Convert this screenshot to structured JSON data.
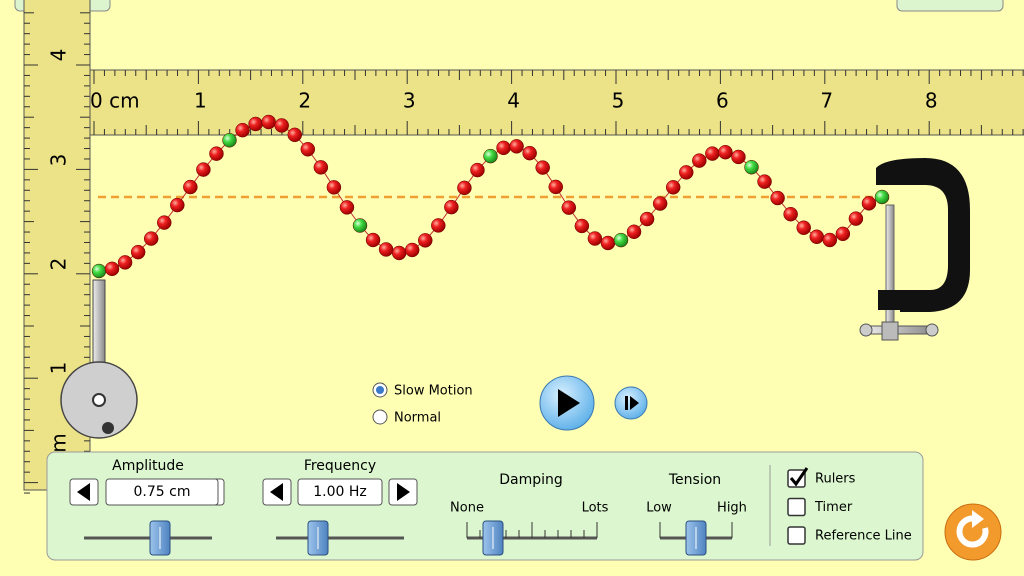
{
  "rulers": {
    "horizontal": [
      "0 cm",
      1,
      2,
      3,
      4,
      5,
      6,
      7,
      8
    ],
    "vertical": [
      4,
      3,
      2,
      1,
      "m"
    ]
  },
  "playback": {
    "slow_motion": "Slow Motion",
    "normal": "Normal"
  },
  "controls": {
    "amplitude": {
      "title": "Amplitude",
      "value": "0.75 cm"
    },
    "frequency": {
      "title": "Frequency",
      "value": "1.00 Hz"
    },
    "damping": {
      "title": "Damping",
      "min": "None",
      "max": "Lots"
    },
    "tension": {
      "title": "Tension",
      "min": "Low",
      "max": "High"
    },
    "checkboxes": [
      "Rulers",
      "Timer",
      "Reference Line"
    ]
  }
}
